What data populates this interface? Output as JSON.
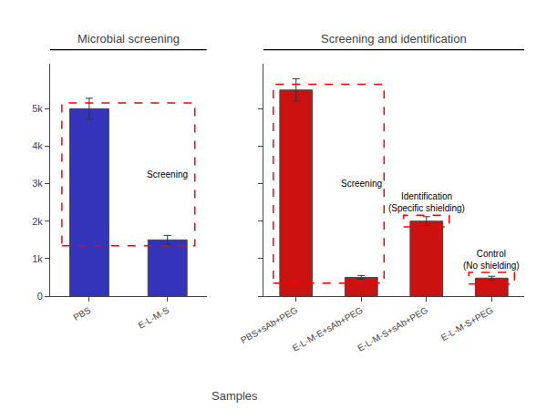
{
  "chart_data": [
    {
      "type": "bar",
      "title": "Microbial screening",
      "xlabel": "Samples",
      "categories": [
        "PBS",
        "E-L-M-S"
      ],
      "values": [
        5000,
        1500
      ],
      "errors": [
        280,
        120
      ],
      "color": "#3333bb",
      "ylim": [
        0,
        6200
      ],
      "yticks": [
        0,
        {
          "value": 1000,
          "label": "1k"
        },
        {
          "value": 2000,
          "label": "2k"
        },
        {
          "value": 3000,
          "label": "3k"
        },
        {
          "value": 4000,
          "label": "4k"
        },
        {
          "value": 5000,
          "label": "5k"
        }
      ],
      "grid": false,
      "annotations": [
        {
          "text": "Screening",
          "categories": [
            "PBS",
            "E-L-M-S"
          ],
          "color": "red"
        }
      ]
    },
    {
      "type": "bar",
      "title": "Screening and identification",
      "categories": [
        "PBS+sAb+PEG",
        "E-L-M-E+sAb+PEG",
        "E-L-M-S+sAb+PEG",
        "E-L-M-S+PEG"
      ],
      "values": [
        5500,
        500,
        2000,
        480
      ],
      "errors": [
        300,
        50,
        120,
        50
      ],
      "color": "#cc1111",
      "ylim": [
        0,
        6200
      ],
      "yticks": [
        0,
        1000,
        2000,
        3000,
        4000,
        5000
      ],
      "tick_labels": "x",
      "grid": false,
      "annotations": [
        {
          "text": "Screening",
          "categories": [
            "PBS+sAb+PEG",
            "E-L-M-E+sAb+PEG"
          ],
          "color": "red"
        },
        {
          "text": "Identification\n(Specific shielding)",
          "categories": [
            "E-L-M-S+sAb+PEG"
          ],
          "color": "red"
        },
        {
          "text": "Control\n(No shielding)",
          "categories": [
            "E-L-M-S+PEG"
          ],
          "color": "red"
        }
      ]
    }
  ]
}
